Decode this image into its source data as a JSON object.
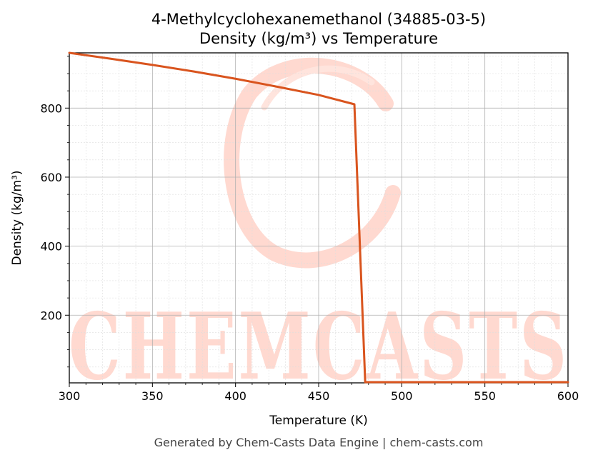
{
  "chart_data": {
    "type": "line",
    "title_line1": "4-Methylcyclohexanemethanol (34885-03-5)",
    "title_line2": "Density (kg/m³) vs Temperature",
    "xlabel": "Temperature (K)",
    "ylabel": "Density (kg/m³)",
    "xlim": [
      300,
      600
    ],
    "ylim": [
      4,
      960
    ],
    "xticks": [
      300,
      350,
      400,
      450,
      500,
      550,
      600
    ],
    "yticks": [
      200,
      400,
      600,
      800
    ],
    "grid": true,
    "series": [
      {
        "color": "#d9541e",
        "x": [
          300,
          325,
          350,
          375,
          400,
          425,
          450,
          471.5,
          478,
          500,
          550,
          600
        ],
        "y": [
          960,
          943,
          925,
          906,
          885,
          862,
          838,
          811,
          6,
          6,
          6,
          6
        ]
      }
    ]
  },
  "watermark": {
    "text": "CHEMCASTS"
  },
  "footer": "Generated by Chem-Casts Data Engine | chem-casts.com"
}
